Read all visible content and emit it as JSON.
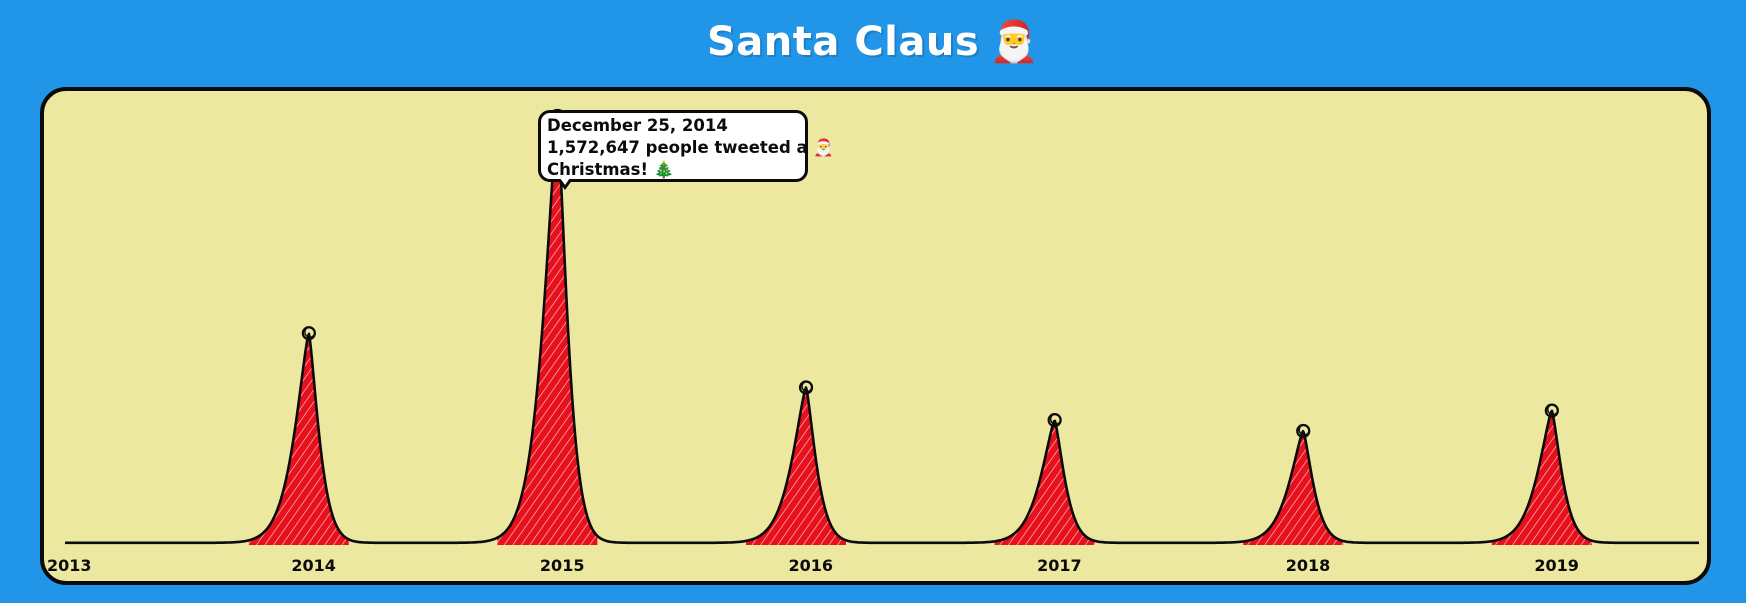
{
  "page": {
    "title": "Santa Claus",
    "title_emoji": "🎅",
    "background_color": "#2196e8"
  },
  "tooltip": {
    "date": "December 25, 2014",
    "count_text": "1,572,647 people tweeted a",
    "count_emoji": "🎅",
    "greeting": "Christmas!",
    "greeting_emoji": "🎄"
  },
  "chart_data": {
    "type": "area",
    "title": "Santa Claus",
    "xlabel": "",
    "ylabel": "",
    "x_ticks": [
      "2013",
      "2014",
      "2015",
      "2016",
      "2017",
      "2018",
      "2019"
    ],
    "ylim": [
      0,
      1650000
    ],
    "baseline": 8000,
    "grid": false,
    "legend": "none",
    "fill_color": "#e8101e",
    "line_color": "#0b0b0b",
    "plot_background": "#ede8a0",
    "peaks": [
      {
        "date": "2013-12-25",
        "value": 780000
      },
      {
        "date": "2014-12-25",
        "value": 1572647
      },
      {
        "date": "2015-12-25",
        "value": 580000
      },
      {
        "date": "2016-12-25",
        "value": 460000
      },
      {
        "date": "2017-12-25",
        "value": 420000
      },
      {
        "date": "2018-12-25",
        "value": 495000
      }
    ],
    "highlighted_point": {
      "date": "2014-12-25",
      "value": 1572647
    }
  }
}
